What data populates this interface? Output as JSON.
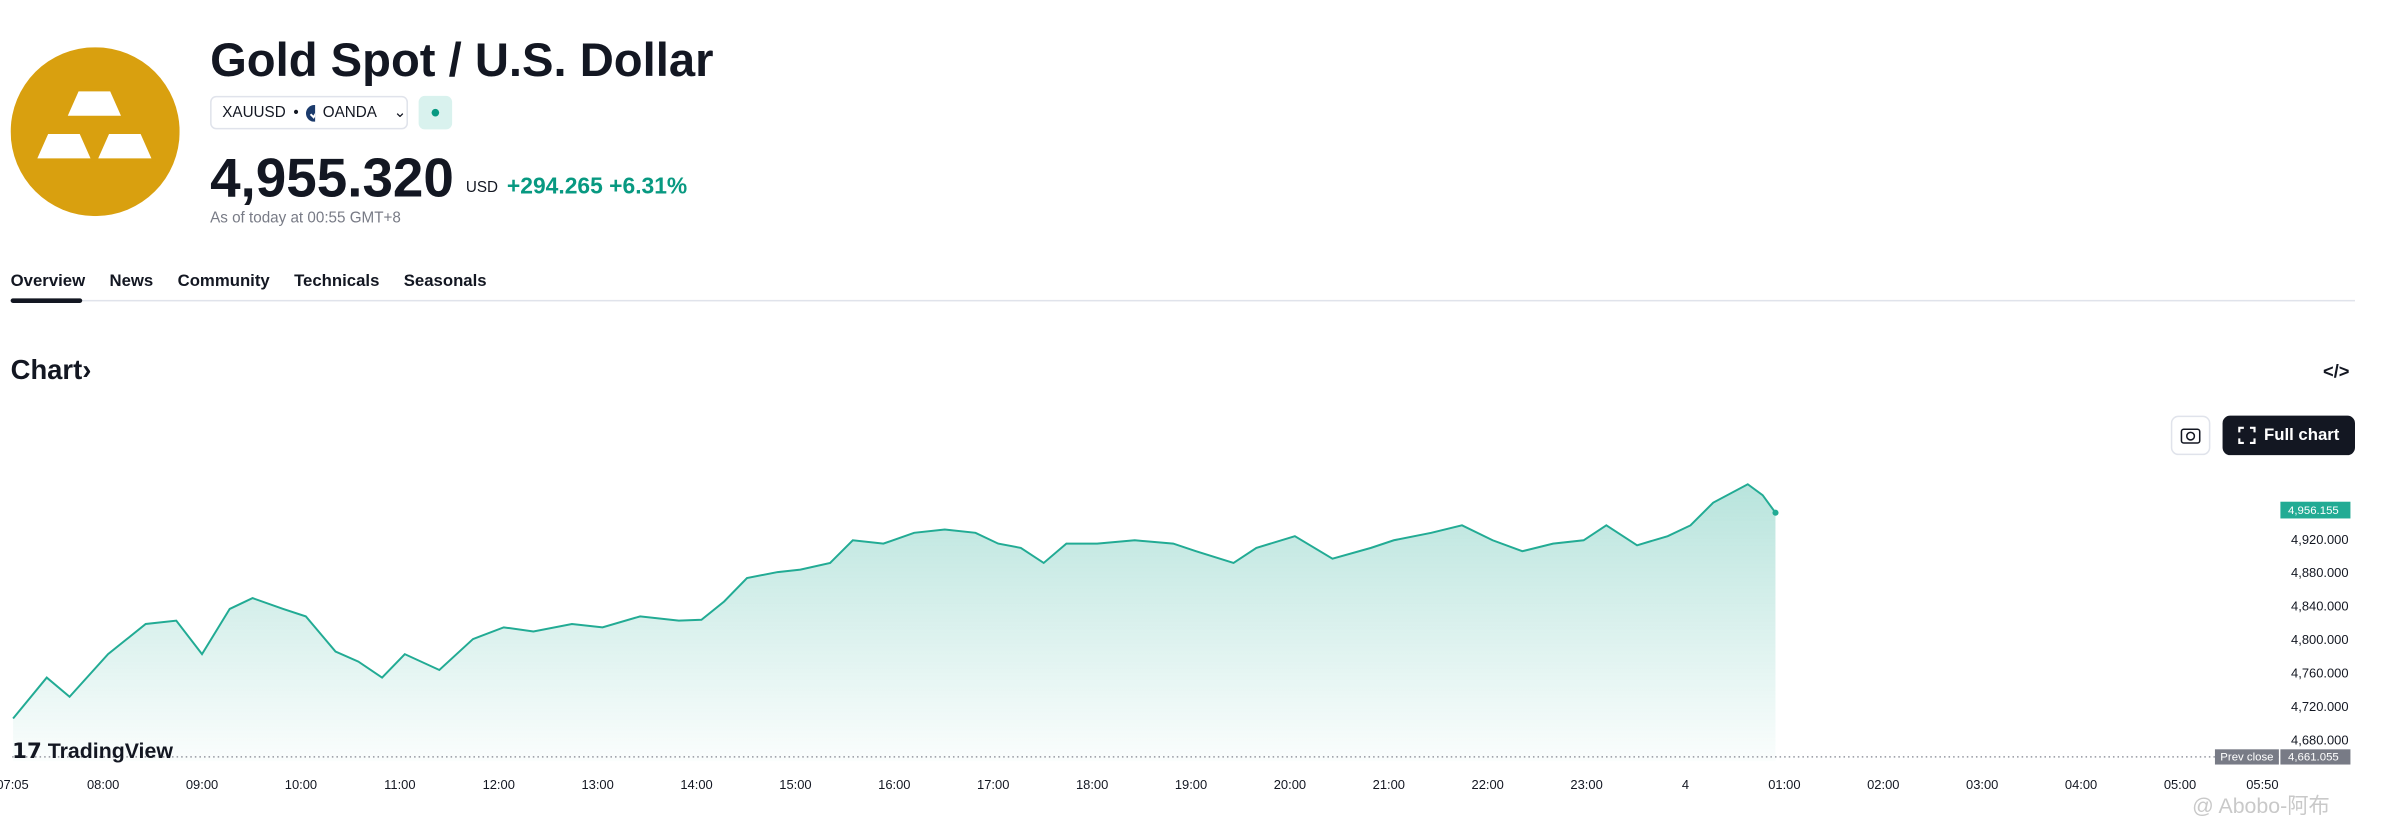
{
  "header": {
    "title": "Gold Spot / U.S. Dollar",
    "symbol": "XAUUSD",
    "exchange": "OANDA",
    "price": "4,955.320",
    "currency": "USD",
    "change": "+294.265",
    "change_percent": "+6.31%",
    "as_of": "As of today at 00:55 GMT+8"
  },
  "tabs": [
    "Overview",
    "News",
    "Community",
    "Technicals",
    "Seasonals"
  ],
  "section_title": "Chart",
  "embed_icon": "</>",
  "full_chart_button": "Full chart",
  "logo": "TradingView",
  "watermark": "@ Abobo-阿布",
  "chart_data": {
    "type": "area",
    "x": [
      7.09,
      7.43,
      7.66,
      8.05,
      8.43,
      8.74,
      9.0,
      9.28,
      9.51,
      9.82,
      10.05,
      10.35,
      10.58,
      10.82,
      11.05,
      11.4,
      11.74,
      12.05,
      12.35,
      12.74,
      13.05,
      13.43,
      13.82,
      14.05,
      14.28,
      14.51,
      14.82,
      15.05,
      15.35,
      15.58,
      15.89,
      16.2,
      16.51,
      16.82,
      17.05,
      17.28,
      17.51,
      17.74,
      18.05,
      18.43,
      18.82,
      19.05,
      19.43,
      19.66,
      20.05,
      20.43,
      20.82,
      21.05,
      21.43,
      21.74,
      22.05,
      22.35,
      22.66,
      22.97,
      23.2,
      23.51,
      23.82,
      24.05,
      24.28,
      24.63,
      24.78,
      24.91
    ],
    "series": [
      {
        "color": "#22ab94",
        "values": [
          4707,
          4756,
          4733,
          4784,
          4820,
          4824,
          4784,
          4838,
          4851,
          4838,
          4829,
          4787,
          4775,
          4756,
          4784,
          4765,
          4802,
          4816,
          4811,
          4820,
          4816,
          4829,
          4824,
          4825,
          4847,
          4875,
          4882,
          4885,
          4893,
          4920,
          4916,
          4929,
          4933,
          4929,
          4916,
          4911,
          4893,
          4916,
          4916,
          4920,
          4916,
          4907,
          4893,
          4911,
          4925,
          4898,
          4911,
          4920,
          4929,
          4938,
          4920,
          4907,
          4916,
          4920,
          4938,
          4914,
          4925,
          4938,
          4965,
          4987,
          4974,
          4953
        ]
      }
    ],
    "xlim": [
      7.08,
      30
    ],
    "xticks": [
      {
        "value": 7.0833,
        "label": "07:05"
      },
      {
        "value": 8,
        "label": "08:00"
      },
      {
        "value": 9,
        "label": "09:00"
      },
      {
        "value": 10,
        "label": "10:00"
      },
      {
        "value": 11,
        "label": "11:00"
      },
      {
        "value": 12,
        "label": "12:00"
      },
      {
        "value": 13,
        "label": "13:00"
      },
      {
        "value": 14,
        "label": "14:00"
      },
      {
        "value": 15,
        "label": "15:00"
      },
      {
        "value": 16,
        "label": "16:00"
      },
      {
        "value": 17,
        "label": "17:00"
      },
      {
        "value": 18,
        "label": "18:00"
      },
      {
        "value": 19,
        "label": "19:00"
      },
      {
        "value": 20,
        "label": "20:00"
      },
      {
        "value": 21,
        "label": "21:00"
      },
      {
        "value": 22,
        "label": "22:00"
      },
      {
        "value": 23,
        "label": "23:00"
      },
      {
        "value": 24,
        "label": "4"
      },
      {
        "value": 25,
        "label": "01:00"
      },
      {
        "value": 26,
        "label": "02:00"
      },
      {
        "value": 27,
        "label": "03:00"
      },
      {
        "value": 28,
        "label": "04:00"
      },
      {
        "value": 29,
        "label": "05:00"
      },
      {
        "value": 29.8333,
        "label": "05:50"
      }
    ],
    "ylim": [
      4656,
      5020
    ],
    "yticks": [
      {
        "value": 4680,
        "label": "4,680.000"
      },
      {
        "value": 4720,
        "label": "4,720.000"
      },
      {
        "value": 4760,
        "label": "4,760.000"
      },
      {
        "value": 4800,
        "label": "4,800.000"
      },
      {
        "value": 4840,
        "label": "4,840.000"
      },
      {
        "value": 4880,
        "label": "4,880.000"
      },
      {
        "value": 4920,
        "label": "4,920.000"
      }
    ],
    "last_price": {
      "value": 4956.155,
      "label": "4,956.155"
    },
    "prev_close": {
      "name": "Prev close",
      "value": 4661.055,
      "label": "4,661.055"
    }
  }
}
